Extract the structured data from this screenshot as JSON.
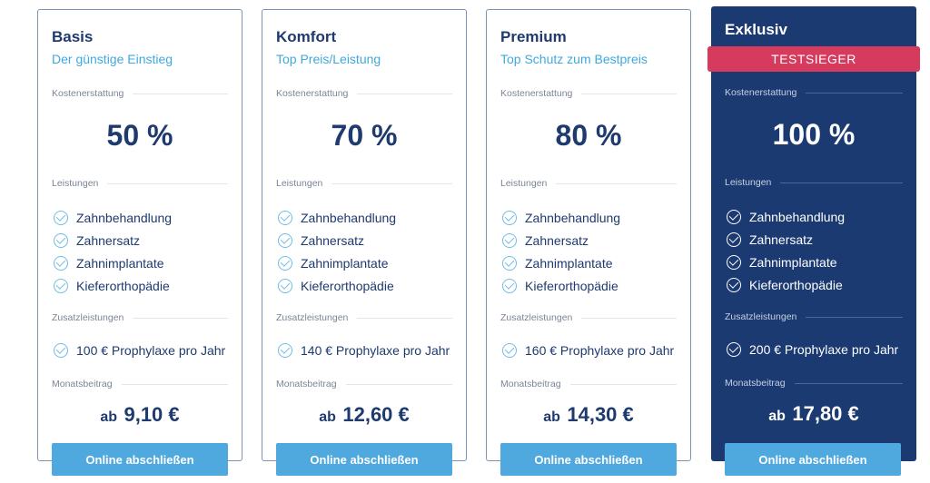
{
  "plans": [
    {
      "name": "Basis",
      "subtitle": "Der günstige Einstieg",
      "badge": "",
      "reimbursement_label": "Kostenerstattung",
      "reimbursement": "50 %",
      "benefits_label": "Leistungen",
      "benefits": [
        "Zahnbehandlung",
        "Zahnersatz",
        "Zahnimplantate",
        "Kieferorthopädie"
      ],
      "extras_label": "Zusatzleistungen",
      "extra": "100 € Prophylaxe pro Jahr",
      "monthly_label": "Monatsbeitrag",
      "price_prefix": "ab",
      "price": "9,10 €",
      "cta_label": "Online abschließen"
    },
    {
      "name": "Komfort",
      "subtitle": "Top Preis/Leistung",
      "badge": "",
      "reimbursement_label": "Kostenerstattung",
      "reimbursement": "70 %",
      "benefits_label": "Leistungen",
      "benefits": [
        "Zahnbehandlung",
        "Zahnersatz",
        "Zahnimplantate",
        "Kieferorthopädie"
      ],
      "extras_label": "Zusatzleistungen",
      "extra": "140 € Prophylaxe pro Jahr",
      "monthly_label": "Monatsbeitrag",
      "price_prefix": "ab",
      "price": "12,60 €",
      "cta_label": "Online abschließen"
    },
    {
      "name": "Premium",
      "subtitle": "Top Schutz zum Bestpreis",
      "badge": "",
      "reimbursement_label": "Kostenerstattung",
      "reimbursement": "80 %",
      "benefits_label": "Leistungen",
      "benefits": [
        "Zahnbehandlung",
        "Zahnersatz",
        "Zahnimplantate",
        "Kieferorthopädie"
      ],
      "extras_label": "Zusatzleistungen",
      "extra": "160 € Prophylaxe pro Jahr",
      "monthly_label": "Monatsbeitrag",
      "price_prefix": "ab",
      "price": "14,30 €",
      "cta_label": "Online abschließen"
    },
    {
      "name": "Exklusiv",
      "subtitle": "",
      "badge": "TESTSIEGER",
      "reimbursement_label": "Kostenerstattung",
      "reimbursement": "100 %",
      "benefits_label": "Leistungen",
      "benefits": [
        "Zahnbehandlung",
        "Zahnersatz",
        "Zahnimplantate",
        "Kieferorthopädie"
      ],
      "extras_label": "Zusatzleistungen",
      "extra": "200 € Prophylaxe pro Jahr",
      "monthly_label": "Monatsbeitrag",
      "price_prefix": "ab",
      "price": "17,80 €",
      "cta_label": "Online abschließen"
    }
  ],
  "colors": {
    "navy": "#1e3a6e",
    "featured_bg": "#1b3a72",
    "accent_blue": "#3fa9dc",
    "button": "#4fa9df",
    "badge": "#d63a5d",
    "check": "#6fbde4"
  },
  "icons": {
    "benefit": "check-circle-icon"
  }
}
